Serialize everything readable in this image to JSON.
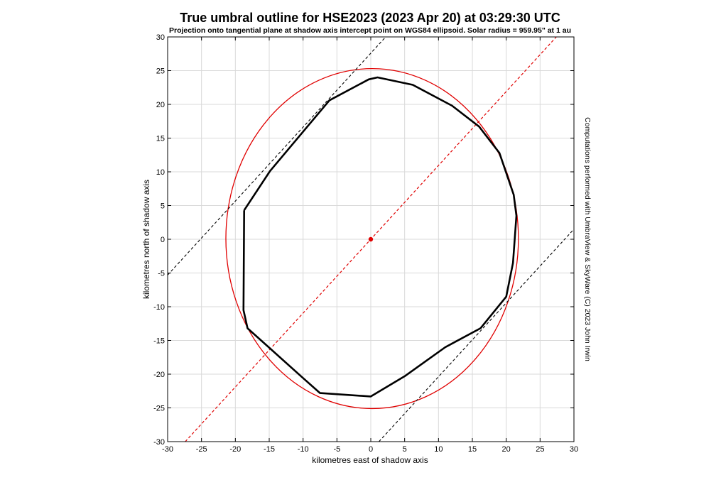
{
  "chart_data": {
    "type": "line",
    "title": "True umbral outline for HSE2023 (2023 Apr 20) at 03:29:30 UTC",
    "subtitle": "Projection onto tangential plane at shadow axis intercept point on WGS84 ellipsoid. Solar radius = 959.95\" at 1 au",
    "xlabel": "kilometres east of shadow axis",
    "ylabel": "kilometres north of shadow axis",
    "side_note": "Computations performed with UmbraView & SkyWare (C) 2023 John Irwin",
    "xlim": [
      -30,
      30
    ],
    "ylim": [
      -30,
      30
    ],
    "xticks": [
      -30,
      -25,
      -20,
      -15,
      -10,
      -5,
      0,
      5,
      10,
      15,
      20,
      25,
      30
    ],
    "yticks": [
      -30,
      -25,
      -20,
      -15,
      -10,
      -5,
      0,
      5,
      10,
      15,
      20,
      25,
      30
    ],
    "grid": true,
    "colors": {
      "outline": "#000000",
      "ellipse": "#e00000",
      "axis_line": "#e00000",
      "tangent_lines": "#000000",
      "grid": "#d9d9d9"
    },
    "series": [
      {
        "style": "solid-black-thick",
        "x": [
          -18.7,
          -14.9,
          -6.1,
          -0.3,
          1.0,
          6.2,
          12.0,
          16.0,
          19.0,
          21.1,
          21.5,
          21.0,
          20.0,
          16.2,
          11.0,
          5.0,
          0.0,
          -7.5,
          -10.2,
          -18.2,
          -18.8,
          -18.7
        ],
        "y": [
          4.3,
          10.1,
          20.6,
          23.7,
          24.0,
          22.9,
          19.8,
          16.7,
          12.8,
          6.6,
          3.5,
          -3.5,
          -8.5,
          -13.2,
          -16.0,
          -20.3,
          -23.3,
          -22.8,
          -20.4,
          -13.2,
          -10.5,
          4.3
        ]
      },
      {
        "style": "ellipse-red",
        "shape": "ellipse",
        "center": [
          0.2,
          0.1
        ],
        "semi_axes": [
          21.6,
          25.2
        ],
        "rotation_deg": 0
      },
      {
        "style": "dashed-red",
        "x": [
          -27.4,
          27.4
        ],
        "y": [
          -30.0,
          30.0
        ]
      },
      {
        "style": "dashed-black",
        "x": [
          -30.0,
          2.2
        ],
        "y": [
          -5.3,
          30.0
        ]
      },
      {
        "style": "dashed-black",
        "x": [
          1.2,
          30.0
        ],
        "y": [
          -30.0,
          1.5
        ]
      },
      {
        "style": "red-marker",
        "x": [
          0
        ],
        "y": [
          0
        ]
      }
    ]
  }
}
